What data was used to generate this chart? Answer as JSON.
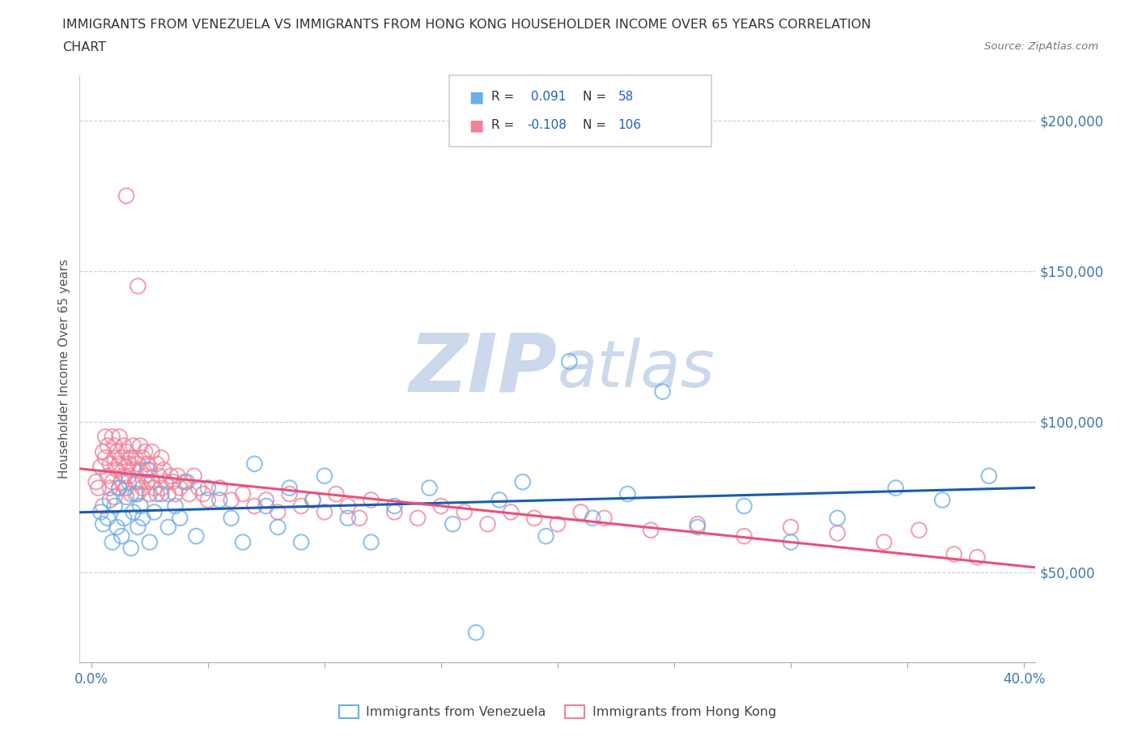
{
  "title_line1": "IMMIGRANTS FROM VENEZUELA VS IMMIGRANTS FROM HONG KONG HOUSEHOLDER INCOME OVER 65 YEARS CORRELATION",
  "title_line2": "CHART",
  "source_text": "Source: ZipAtlas.com",
  "ylabel": "Householder Income Over 65 years",
  "venezuela_color": "#6aaee8",
  "hong_kong_color": "#f0829a",
  "venezuela_R": 0.091,
  "venezuela_N": 58,
  "hong_kong_R": -0.108,
  "hong_kong_N": 106,
  "trend_blue": "#1a5cb0",
  "trend_pink": "#e8507a",
  "legend_R_color": "#2060c0",
  "watermark_color": "#ccd8ec"
}
